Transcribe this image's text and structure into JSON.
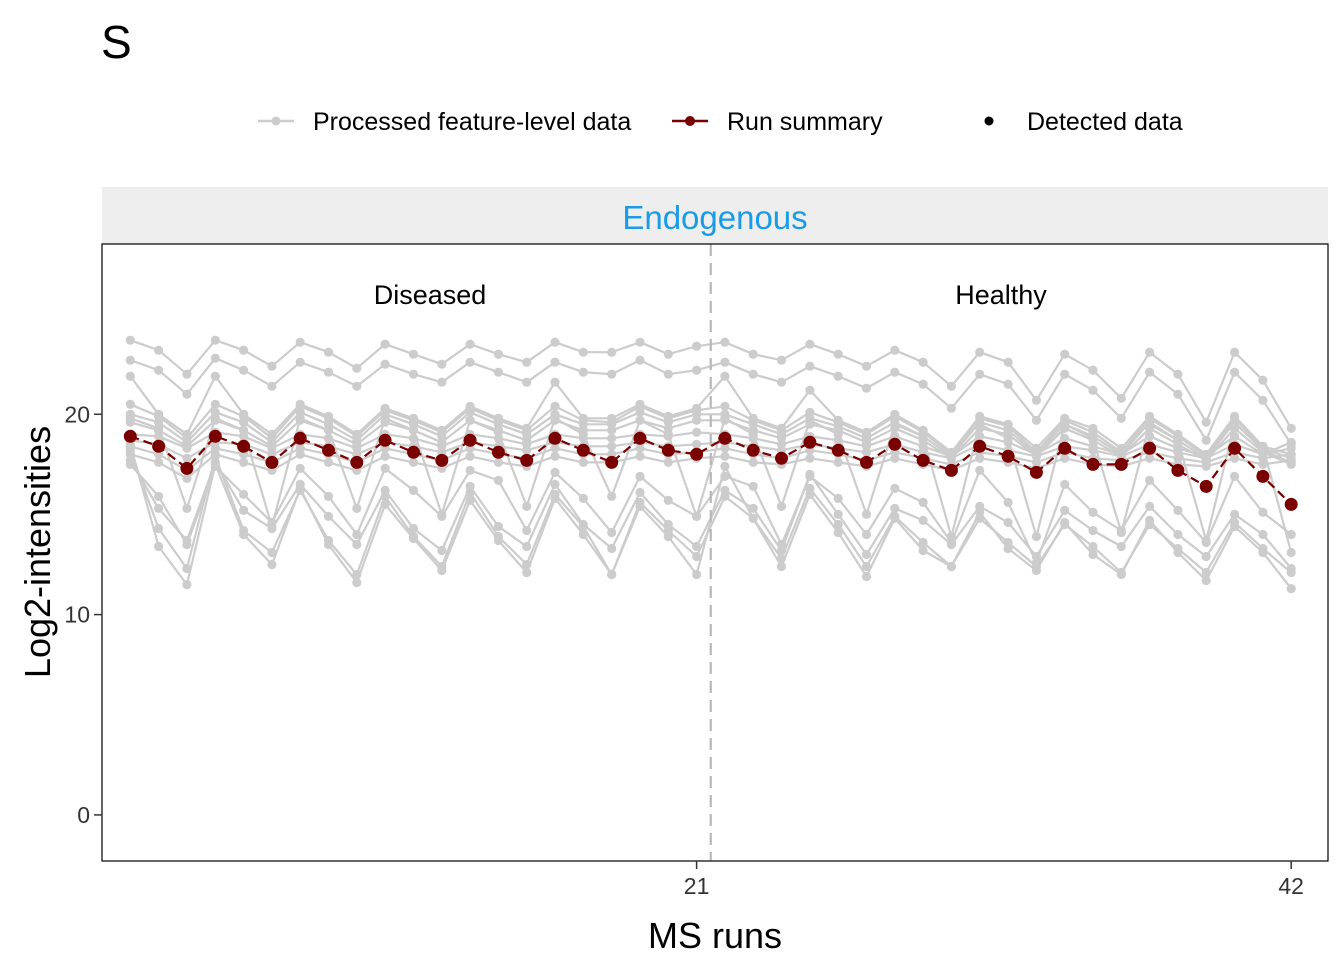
{
  "page_label": "S",
  "legend": {
    "processed_label": "Processed feature-level data",
    "summary_label": "Run summary",
    "detected_label": "Detected data"
  },
  "colors": {
    "feature": "#cccccc",
    "summary": "#7a0000",
    "strip_bg": "#eeeeee",
    "strip_text": "#1a9be6",
    "divider": "#b8b8b8"
  },
  "chart_data": {
    "type": "line",
    "title": "",
    "facet_label": "Endogenous",
    "group_labels": [
      "Diseased",
      "Healthy"
    ],
    "group_divider_x": 21.5,
    "xlabel": "MS runs",
    "ylabel": "Log2-intensities",
    "xlim": [
      0,
      43.3
    ],
    "ylim": [
      -2.3,
      28.5
    ],
    "x_ticks": [
      21,
      42
    ],
    "y_ticks": [
      0,
      10,
      20
    ],
    "grid": false,
    "legend_position": "top",
    "x": [
      1,
      2,
      3,
      4,
      5,
      6,
      7,
      8,
      9,
      10,
      11,
      12,
      13,
      14,
      15,
      16,
      17,
      18,
      19,
      20,
      21,
      22,
      23,
      24,
      25,
      26,
      27,
      28,
      29,
      30,
      31,
      32,
      33,
      34,
      35,
      36,
      37,
      38,
      39,
      40,
      41,
      42
    ],
    "summary": {
      "name": "Run summary",
      "values": [
        18.9,
        18.4,
        17.3,
        18.9,
        18.4,
        17.6,
        18.8,
        18.2,
        17.6,
        18.7,
        18.1,
        17.7,
        18.7,
        18.1,
        17.7,
        18.8,
        18.2,
        17.6,
        18.8,
        18.2,
        18.0,
        18.8,
        18.2,
        17.8,
        18.6,
        18.2,
        17.6,
        18.5,
        17.7,
        17.2,
        18.4,
        17.9,
        17.1,
        18.3,
        17.5,
        17.5,
        18.3,
        17.2,
        16.4,
        18.3,
        16.9,
        15.5
      ]
    },
    "features": [
      {
        "values": [
          23.7,
          23.2,
          22.0,
          23.7,
          23.2,
          22.4,
          23.6,
          23.1,
          22.3,
          23.5,
          23.0,
          22.5,
          23.5,
          23.0,
          22.6,
          23.6,
          23.1,
          23.1,
          23.6,
          23.0,
          23.4,
          23.6,
          23.0,
          22.7,
          23.5,
          23.0,
          22.4,
          23.2,
          22.6,
          21.4,
          23.1,
          22.6,
          20.7,
          23.0,
          22.2,
          20.8,
          23.1,
          22.0,
          19.6,
          23.1,
          21.7,
          19.3
        ]
      },
      {
        "values": [
          22.7,
          22.2,
          21.0,
          22.8,
          22.2,
          21.4,
          22.6,
          22.1,
          21.4,
          22.5,
          22.0,
          21.6,
          22.6,
          22.1,
          21.6,
          22.6,
          22.1,
          22.0,
          22.7,
          22.0,
          22.2,
          22.6,
          22.0,
          21.6,
          22.4,
          21.9,
          21.3,
          22.1,
          21.5,
          20.3,
          22.0,
          21.5,
          19.7,
          22.0,
          21.2,
          19.8,
          22.1,
          21.0,
          18.7,
          22.1,
          20.7,
          18.5
        ]
      },
      {
        "values": [
          21.9,
          20.0,
          19.0,
          21.9,
          20.0,
          19.0,
          20.5,
          19.9,
          19.0,
          20.3,
          19.8,
          19.2,
          20.4,
          19.8,
          19.3,
          21.6,
          19.8,
          19.8,
          20.5,
          19.9,
          20.3,
          21.9,
          19.8,
          19.3,
          21.2,
          19.7,
          19.1,
          20.0,
          19.2,
          18.1,
          19.9,
          19.5,
          18.3,
          19.8,
          19.3,
          18.3,
          19.9,
          19.0,
          18.0,
          19.9,
          18.4,
          18.0
        ]
      },
      {
        "values": [
          20.5,
          19.9,
          18.8,
          20.5,
          19.9,
          18.8,
          20.4,
          19.8,
          18.9,
          20.2,
          19.7,
          19.1,
          20.3,
          19.7,
          19.2,
          20.4,
          19.7,
          19.6,
          20.4,
          19.8,
          20.2,
          20.4,
          19.7,
          19.2,
          20.1,
          19.6,
          19.0,
          19.9,
          19.1,
          18.0,
          19.8,
          19.4,
          18.1,
          19.7,
          19.1,
          18.1,
          19.8,
          18.9,
          17.9,
          19.8,
          18.3,
          17.8
        ]
      },
      {
        "values": [
          20.0,
          19.6,
          18.6,
          20.1,
          19.6,
          18.6,
          20.1,
          19.5,
          18.7,
          20.0,
          19.5,
          18.9,
          20.1,
          19.5,
          19.0,
          20.0,
          19.5,
          19.5,
          20.1,
          19.6,
          20.0,
          20.0,
          19.5,
          19.0,
          19.8,
          19.4,
          18.8,
          19.6,
          18.9,
          17.9,
          19.6,
          19.2,
          18.0,
          19.5,
          18.9,
          18.0,
          19.6,
          18.7,
          17.8,
          19.6,
          18.2,
          17.6
        ]
      },
      {
        "values": [
          19.6,
          19.2,
          18.4,
          19.7,
          19.2,
          18.4,
          19.7,
          19.2,
          18.5,
          19.6,
          19.2,
          18.6,
          19.7,
          19.2,
          18.7,
          19.7,
          19.2,
          19.2,
          19.7,
          19.3,
          19.7,
          19.7,
          19.2,
          18.8,
          19.5,
          19.2,
          18.6,
          19.3,
          18.7,
          17.8,
          19.3,
          19.0,
          17.9,
          19.3,
          18.7,
          17.9,
          19.3,
          18.5,
          17.7,
          19.3,
          18.1,
          17.5
        ]
      },
      {
        "values": [
          19.0,
          18.9,
          18.3,
          19.1,
          18.9,
          18.3,
          19.0,
          18.8,
          18.3,
          19.0,
          18.8,
          18.4,
          19.0,
          18.8,
          18.5,
          19.0,
          18.8,
          18.8,
          19.0,
          18.9,
          19.1,
          19.0,
          18.8,
          18.5,
          18.9,
          18.7,
          18.4,
          18.9,
          18.4,
          17.9,
          18.9,
          18.6,
          18.0,
          18.8,
          18.4,
          18.0,
          18.9,
          18.3,
          17.9,
          18.9,
          18.0,
          18.6
        ]
      },
      {
        "values": [
          18.7,
          18.5,
          17.8,
          18.6,
          18.5,
          18.0,
          18.6,
          18.4,
          18.0,
          18.6,
          18.4,
          18.1,
          18.6,
          18.4,
          18.2,
          18.6,
          18.4,
          18.4,
          18.6,
          18.4,
          18.5,
          18.6,
          18.4,
          18.2,
          18.5,
          18.3,
          18.1,
          18.5,
          18.1,
          17.8,
          18.5,
          18.2,
          17.9,
          18.4,
          18.2,
          17.9,
          18.5,
          18.1,
          17.8,
          18.5,
          18.0,
          18.3
        ]
      },
      {
        "values": [
          18.4,
          18.0,
          17.2,
          18.3,
          18.0,
          17.6,
          18.3,
          18.0,
          17.6,
          18.3,
          18.0,
          17.7,
          18.3,
          18.0,
          17.8,
          18.3,
          18.0,
          18.0,
          18.3,
          18.0,
          18.1,
          18.3,
          18.0,
          17.8,
          18.2,
          18.0,
          17.7,
          18.1,
          17.8,
          17.5,
          18.1,
          17.9,
          17.6,
          18.1,
          17.8,
          17.7,
          18.1,
          17.8,
          17.6,
          18.1,
          17.8,
          18.0
        ]
      },
      {
        "values": [
          18.0,
          17.6,
          16.8,
          18.0,
          17.6,
          17.2,
          18.0,
          17.6,
          17.2,
          17.9,
          17.6,
          17.3,
          17.9,
          17.6,
          17.4,
          17.9,
          17.6,
          17.6,
          17.9,
          17.6,
          17.8,
          17.9,
          17.6,
          17.5,
          17.8,
          17.6,
          17.4,
          17.8,
          17.5,
          17.2,
          17.8,
          17.6,
          17.3,
          17.8,
          17.5,
          17.4,
          17.8,
          17.5,
          17.4,
          17.8,
          17.5,
          17.7
        ]
      },
      {
        "values": [
          17.5,
          15.9,
          13.5,
          17.4,
          16.0,
          14.6,
          17.3,
          15.9,
          14.0,
          17.3,
          16.2,
          14.9,
          17.2,
          16.7,
          14.2,
          17.1,
          15.8,
          14.1,
          16.9,
          15.7,
          14.9,
          16.9,
          16.4,
          13.5,
          16.9,
          15.8,
          14.0,
          16.3,
          15.6,
          13.6,
          17.2,
          15.6,
          12.6,
          16.5,
          15.1,
          14.2,
          16.7,
          15.2,
          13.6,
          16.9,
          15.1,
          14.0
        ]
      },
      {
        "values": [
          17.7,
          15.3,
          13.7,
          17.6,
          15.2,
          14.3,
          16.5,
          14.9,
          13.5,
          16.2,
          14.3,
          13.2,
          16.4,
          14.4,
          13.4,
          16.5,
          14.5,
          13.3,
          16.1,
          14.5,
          13.4,
          16.2,
          15.3,
          13.2,
          17.0,
          15.0,
          13.0,
          15.3,
          14.7,
          13.5,
          15.4,
          14.6,
          12.9,
          15.2,
          14.2,
          13.4,
          15.4,
          14.0,
          12.9,
          15.0,
          14.0,
          12.3
        ]
      },
      {
        "values": [
          18.2,
          14.3,
          12.3,
          17.9,
          14.2,
          13.1,
          16.2,
          13.7,
          12.0,
          15.9,
          13.9,
          12.4,
          16.1,
          13.9,
          12.5,
          16.0,
          14.4,
          12.0,
          15.6,
          14.2,
          12.9,
          15.9,
          14.8,
          12.8,
          16.3,
          14.5,
          12.4,
          14.9,
          13.6,
          12.4,
          14.8,
          13.6,
          12.4,
          14.5,
          13.4,
          12.1,
          14.5,
          13.3,
          12.1,
          14.6,
          13.3,
          12.1
        ]
      },
      {
        "values": [
          18.5,
          13.4,
          11.5,
          17.5,
          14.0,
          12.5,
          16.3,
          13.5,
          11.6,
          15.5,
          13.8,
          12.2,
          15.7,
          13.7,
          12.1,
          15.8,
          14.0,
          12.0,
          15.4,
          13.9,
          12.0,
          17.4,
          14.8,
          12.4,
          16.0,
          14.1,
          11.9,
          14.8,
          13.2,
          12.4,
          15.1,
          13.3,
          12.2,
          14.6,
          13.0,
          12.0,
          14.7,
          13.1,
          11.7,
          14.4,
          13.1,
          11.3
        ]
      },
      {
        "values": [
          19.8,
          19.3,
          15.3,
          19.8,
          19.2,
          14.4,
          19.8,
          19.2,
          15.3,
          19.8,
          19.2,
          15.0,
          19.7,
          19.1,
          15.4,
          19.8,
          19.0,
          15.9,
          19.7,
          19.0,
          14.9,
          19.8,
          19.0,
          15.4,
          19.7,
          19.0,
          15.0,
          19.5,
          18.9,
          13.9,
          19.5,
          18.8,
          13.9,
          19.5,
          18.8,
          14.1,
          19.5,
          18.7,
          13.7,
          19.5,
          18.4,
          13.1
        ]
      }
    ]
  }
}
